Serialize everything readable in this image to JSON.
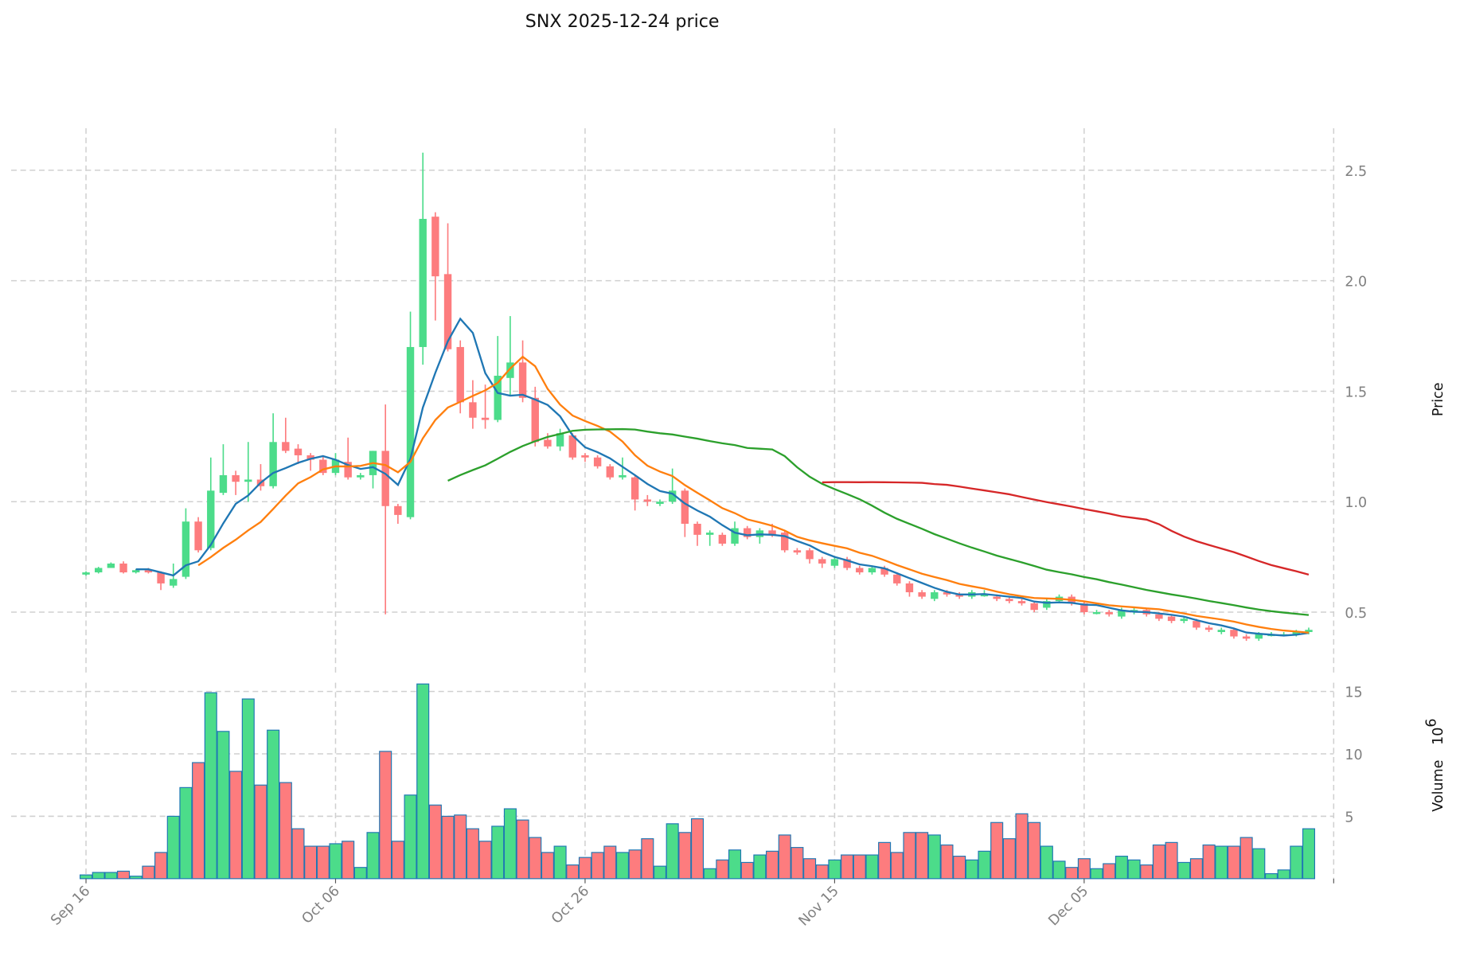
{
  "chart_data": {
    "type": "candlestick",
    "title": "SNX  2025-12-24  price",
    "ylabel": "Price",
    "volume_label": "Volume",
    "volume_exponent_base": "10",
    "volume_exponent": "6",
    "ylim": [
      0.21,
      2.69
    ],
    "volume_ylim": [
      0,
      15.7
    ],
    "xlim": [
      -6,
      100
    ],
    "price_ticks": [
      0.5,
      1.0,
      1.5,
      2.0,
      2.5
    ],
    "price_tick_labels": [
      "0.5",
      "1.0",
      "1.5",
      "2.0",
      "2.5"
    ],
    "volume_ticks": [
      5,
      10,
      15
    ],
    "volume_tick_labels": [
      "5",
      "10",
      "15"
    ],
    "x_ticks": [
      0,
      20,
      40,
      60,
      80,
      100
    ],
    "x_tick_labels": [
      "Sep 16",
      "Oct 06",
      "Oct 26",
      "Nov 15",
      "Dec 05",
      ""
    ],
    "grid": true,
    "moving_averages": [
      {
        "window": 5,
        "color": "#1f77b4"
      },
      {
        "window": 10,
        "color": "#ff7f0e"
      },
      {
        "window": 30,
        "color": "#2ca02c"
      },
      {
        "window": 60,
        "color": "#d62728"
      }
    ],
    "colors": {
      "up": "#4cdc8a",
      "down": "#fd7c7e",
      "volume_edge": "#1f77b4"
    },
    "ohlcv": [
      [
        0.67,
        0.68,
        0.685,
        0.665,
        0.3
      ],
      [
        0.68,
        0.7,
        0.705,
        0.675,
        0.5
      ],
      [
        0.7,
        0.72,
        0.725,
        0.7,
        0.5
      ],
      [
        0.72,
        0.68,
        0.73,
        0.675,
        0.6
      ],
      [
        0.68,
        0.69,
        0.695,
        0.675,
        0.2
      ],
      [
        0.69,
        0.68,
        0.7,
        0.675,
        1.0
      ],
      [
        0.68,
        0.63,
        0.685,
        0.6,
        2.1
      ],
      [
        0.62,
        0.65,
        0.72,
        0.61,
        5.0
      ],
      [
        0.66,
        0.91,
        0.97,
        0.65,
        7.3
      ],
      [
        0.91,
        0.78,
        0.93,
        0.77,
        9.3
      ],
      [
        0.79,
        1.05,
        1.2,
        0.78,
        14.9
      ],
      [
        1.04,
        1.12,
        1.26,
        1.03,
        11.8
      ],
      [
        1.12,
        1.09,
        1.14,
        1.03,
        8.6
      ],
      [
        1.09,
        1.1,
        1.27,
        1.0,
        14.4
      ],
      [
        1.1,
        1.07,
        1.17,
        1.05,
        7.5
      ],
      [
        1.07,
        1.27,
        1.4,
        1.06,
        11.9
      ],
      [
        1.27,
        1.23,
        1.38,
        1.22,
        7.7
      ],
      [
        1.24,
        1.21,
        1.26,
        1.17,
        4.0
      ],
      [
        1.21,
        1.19,
        1.22,
        1.14,
        2.6
      ],
      [
        1.19,
        1.13,
        1.21,
        1.12,
        2.6
      ],
      [
        1.13,
        1.19,
        1.22,
        1.12,
        2.8
      ],
      [
        1.18,
        1.11,
        1.29,
        1.1,
        3.0
      ],
      [
        1.11,
        1.12,
        1.13,
        1.1,
        0.9
      ],
      [
        1.12,
        1.23,
        1.23,
        1.06,
        3.7
      ],
      [
        1.23,
        0.98,
        1.44,
        0.49,
        10.2
      ],
      [
        0.98,
        0.94,
        0.99,
        0.9,
        3.0
      ],
      [
        0.93,
        1.7,
        1.86,
        0.92,
        6.7
      ],
      [
        1.7,
        2.28,
        2.58,
        1.62,
        15.6
      ],
      [
        2.29,
        2.02,
        2.31,
        1.82,
        5.9
      ],
      [
        2.03,
        1.69,
        2.26,
        1.68,
        5.0
      ],
      [
        1.7,
        1.45,
        1.73,
        1.4,
        5.1
      ],
      [
        1.45,
        1.38,
        1.55,
        1.33,
        4.0
      ],
      [
        1.38,
        1.37,
        1.53,
        1.33,
        3.0
      ],
      [
        1.37,
        1.57,
        1.75,
        1.36,
        4.2
      ],
      [
        1.56,
        1.63,
        1.84,
        1.48,
        5.6
      ],
      [
        1.63,
        1.47,
        1.73,
        1.45,
        4.7
      ],
      [
        1.47,
        1.27,
        1.52,
        1.25,
        3.3
      ],
      [
        1.28,
        1.25,
        1.31,
        1.24,
        2.1
      ],
      [
        1.25,
        1.31,
        1.33,
        1.23,
        2.6
      ],
      [
        1.3,
        1.2,
        1.31,
        1.19,
        1.1
      ],
      [
        1.21,
        1.2,
        1.22,
        1.18,
        1.7
      ],
      [
        1.2,
        1.16,
        1.21,
        1.15,
        2.1
      ],
      [
        1.16,
        1.11,
        1.17,
        1.1,
        2.6
      ],
      [
        1.11,
        1.12,
        1.2,
        1.1,
        2.1
      ],
      [
        1.11,
        1.01,
        1.12,
        0.96,
        2.3
      ],
      [
        1.01,
        1.0,
        1.03,
        0.98,
        3.2
      ],
      [
        0.99,
        1.0,
        1.01,
        0.98,
        1.0
      ],
      [
        1.0,
        1.05,
        1.15,
        0.99,
        4.4
      ],
      [
        1.05,
        0.9,
        1.06,
        0.84,
        3.7
      ],
      [
        0.9,
        0.85,
        0.91,
        0.8,
        4.8
      ],
      [
        0.85,
        0.86,
        0.87,
        0.8,
        0.8
      ],
      [
        0.85,
        0.81,
        0.86,
        0.8,
        1.5
      ],
      [
        0.81,
        0.88,
        0.91,
        0.8,
        2.3
      ],
      [
        0.88,
        0.84,
        0.89,
        0.83,
        1.3
      ],
      [
        0.84,
        0.87,
        0.88,
        0.81,
        1.9
      ],
      [
        0.87,
        0.85,
        0.9,
        0.84,
        2.2
      ],
      [
        0.86,
        0.78,
        0.87,
        0.77,
        3.5
      ],
      [
        0.78,
        0.77,
        0.79,
        0.76,
        2.5
      ],
      [
        0.78,
        0.74,
        0.79,
        0.72,
        1.6
      ],
      [
        0.74,
        0.72,
        0.75,
        0.7,
        1.1
      ],
      [
        0.71,
        0.74,
        0.75,
        0.7,
        1.5
      ],
      [
        0.74,
        0.7,
        0.75,
        0.69,
        1.9
      ],
      [
        0.7,
        0.68,
        0.71,
        0.67,
        1.9
      ],
      [
        0.68,
        0.7,
        0.71,
        0.67,
        1.9
      ],
      [
        0.7,
        0.67,
        0.71,
        0.66,
        2.9
      ],
      [
        0.67,
        0.63,
        0.68,
        0.62,
        2.1
      ],
      [
        0.63,
        0.59,
        0.64,
        0.57,
        3.7
      ],
      [
        0.59,
        0.57,
        0.6,
        0.56,
        3.7
      ],
      [
        0.56,
        0.59,
        0.6,
        0.55,
        3.5
      ],
      [
        0.59,
        0.58,
        0.6,
        0.57,
        2.7
      ],
      [
        0.58,
        0.57,
        0.59,
        0.56,
        1.8
      ],
      [
        0.57,
        0.59,
        0.6,
        0.56,
        1.5
      ],
      [
        0.58,
        0.58,
        0.6,
        0.57,
        2.2
      ],
      [
        0.57,
        0.56,
        0.58,
        0.55,
        4.5
      ],
      [
        0.56,
        0.55,
        0.57,
        0.54,
        3.2
      ],
      [
        0.55,
        0.54,
        0.56,
        0.53,
        5.2
      ],
      [
        0.54,
        0.51,
        0.55,
        0.5,
        4.5
      ],
      [
        0.52,
        0.55,
        0.56,
        0.51,
        2.6
      ],
      [
        0.55,
        0.57,
        0.58,
        0.54,
        1.4
      ],
      [
        0.57,
        0.54,
        0.58,
        0.53,
        0.9
      ],
      [
        0.54,
        0.5,
        0.55,
        0.49,
        1.6
      ],
      [
        0.5,
        0.5,
        0.51,
        0.49,
        0.8
      ],
      [
        0.5,
        0.49,
        0.51,
        0.48,
        1.2
      ],
      [
        0.48,
        0.51,
        0.52,
        0.47,
        1.8
      ],
      [
        0.5,
        0.51,
        0.52,
        0.49,
        1.5
      ],
      [
        0.51,
        0.49,
        0.52,
        0.48,
        1.1
      ],
      [
        0.49,
        0.47,
        0.5,
        0.46,
        2.7
      ],
      [
        0.48,
        0.46,
        0.49,
        0.45,
        2.9
      ],
      [
        0.46,
        0.47,
        0.48,
        0.45,
        1.3
      ],
      [
        0.46,
        0.43,
        0.47,
        0.42,
        1.6
      ],
      [
        0.43,
        0.42,
        0.44,
        0.41,
        2.7
      ],
      [
        0.41,
        0.42,
        0.43,
        0.4,
        2.6
      ],
      [
        0.42,
        0.39,
        0.43,
        0.38,
        2.6
      ],
      [
        0.39,
        0.38,
        0.4,
        0.37,
        3.3
      ],
      [
        0.38,
        0.4,
        0.41,
        0.37,
        2.4
      ],
      [
        0.4,
        0.4,
        0.41,
        0.39,
        0.4
      ],
      [
        0.4,
        0.4,
        0.41,
        0.39,
        0.7
      ],
      [
        0.4,
        0.41,
        0.42,
        0.39,
        2.6
      ],
      [
        0.41,
        0.42,
        0.43,
        0.4,
        4.0
      ]
    ]
  }
}
